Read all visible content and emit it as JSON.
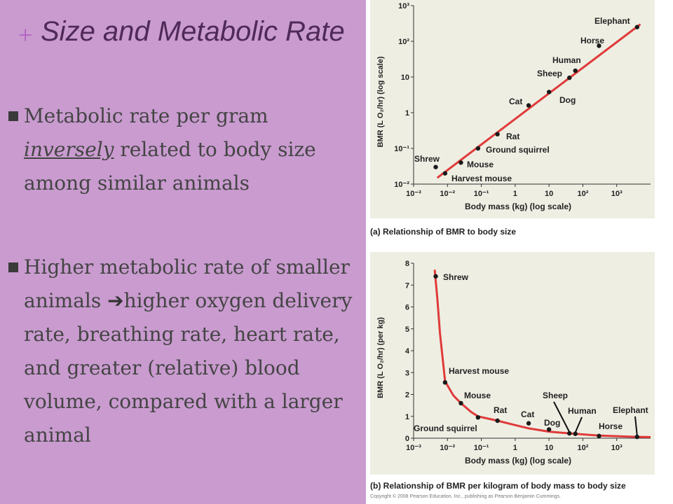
{
  "slide": {
    "plus": "+",
    "title": "Size and Metabolic Rate",
    "bullets": [
      {
        "before": "Metabolic rate per gram ",
        "emphasis": "inversely",
        "after": " related to body size among similar animals"
      },
      {
        "before": "Higher metabolic rate of smaller animals ",
        "arrow": "➔",
        "after": "higher oxygen delivery rate, breathing rate, heart rate, and greater (relative) blood volume, compared with a larger animal"
      }
    ],
    "copyright": "Copyright © 2008 Pearson Education, Inc., publishing as Pearson Benjamin Cummings."
  },
  "colors": {
    "panel": "#c99bcf",
    "title": "#4f2a58",
    "plus": "#b060c0",
    "line": "#e03a3a",
    "chart_bg": "#eeeee3"
  },
  "chart_data": [
    {
      "type": "scatter",
      "caption": "(a) Relationship of BMR to body size",
      "xlabel": "Body mass (kg) (log scale)",
      "ylabel": "BMR (L O₂/hr) (log scale)",
      "x_scale": "log",
      "y_scale": "log",
      "xlim": [
        0.001,
        10000
      ],
      "ylim": [
        0.01,
        1000
      ],
      "x_ticks": [
        {
          "value": 0.001,
          "label": "10⁻³"
        },
        {
          "value": 0.01,
          "label": "10⁻²"
        },
        {
          "value": 0.1,
          "label": "10⁻¹"
        },
        {
          "value": 1,
          "label": "1"
        },
        {
          "value": 10,
          "label": "10"
        },
        {
          "value": 100,
          "label": "10²"
        },
        {
          "value": 1000,
          "label": "10³"
        }
      ],
      "y_ticks": [
        {
          "value": 0.01,
          "label": "10⁻²"
        },
        {
          "value": 0.1,
          "label": "10⁻¹"
        },
        {
          "value": 1,
          "label": "1"
        },
        {
          "value": 10,
          "label": "10"
        },
        {
          "value": 100,
          "label": "10²"
        },
        {
          "value": 1000,
          "label": "10³"
        }
      ],
      "points": [
        {
          "label": "Shrew",
          "x": 0.0045,
          "y": 0.03,
          "anchor": "left"
        },
        {
          "label": "Harvest mouse",
          "x": 0.0085,
          "y": 0.02,
          "anchor": "below"
        },
        {
          "label": "Mouse",
          "x": 0.025,
          "y": 0.04,
          "anchor": "right"
        },
        {
          "label": "Ground squirrel",
          "x": 0.08,
          "y": 0.1,
          "anchor": "right"
        },
        {
          "label": "Rat",
          "x": 0.3,
          "y": 0.25,
          "anchor": "right"
        },
        {
          "label": "Cat",
          "x": 2.5,
          "y": 1.6,
          "anchor": "left"
        },
        {
          "label": "Dog",
          "x": 10,
          "y": 3.8,
          "anchor": "right"
        },
        {
          "label": "Sheep",
          "x": 40,
          "y": 9.5,
          "anchor": "left"
        },
        {
          "label": "Human",
          "x": 60,
          "y": 15,
          "anchor": "above"
        },
        {
          "label": "Horse",
          "x": 300,
          "y": 75,
          "anchor": "left"
        },
        {
          "label": "Elephant",
          "x": 4000,
          "y": 250,
          "anchor": "left"
        }
      ],
      "trendline": [
        [
          0.005,
          0.015
        ],
        [
          5000,
          300
        ]
      ]
    },
    {
      "type": "scatter",
      "caption": "(b) Relationship of BMR per kilogram of body mass to body size",
      "xlabel": "Body mass (kg) (log scale)",
      "ylabel": "BMR (L O₂/hr) (per kg)",
      "x_scale": "log",
      "y_scale": "linear",
      "xlim": [
        0.001,
        10000
      ],
      "ylim": [
        0,
        8
      ],
      "x_ticks": [
        {
          "value": 0.001,
          "label": "10⁻³"
        },
        {
          "value": 0.01,
          "label": "10⁻²"
        },
        {
          "value": 0.1,
          "label": "10⁻¹"
        },
        {
          "value": 1,
          "label": "1"
        },
        {
          "value": 10,
          "label": "10"
        },
        {
          "value": 100,
          "label": "10²"
        },
        {
          "value": 1000,
          "label": "10³"
        }
      ],
      "y_ticks": [
        {
          "value": 0,
          "label": "0"
        },
        {
          "value": 1,
          "label": "1"
        },
        {
          "value": 2,
          "label": "2"
        },
        {
          "value": 3,
          "label": "3"
        },
        {
          "value": 4,
          "label": "4"
        },
        {
          "value": 5,
          "label": "5"
        },
        {
          "value": 6,
          "label": "6"
        },
        {
          "value": 7,
          "label": "7"
        },
        {
          "value": 8,
          "label": "8"
        }
      ],
      "points": [
        {
          "label": "Shrew",
          "x": 0.0045,
          "y": 7.4,
          "anchor": "right"
        },
        {
          "label": "Harvest mouse",
          "x": 0.0085,
          "y": 2.55,
          "anchor": "above-right"
        },
        {
          "label": "Mouse",
          "x": 0.025,
          "y": 1.6,
          "anchor": "above-right"
        },
        {
          "label": "Ground squirrel",
          "x": 0.08,
          "y": 0.95,
          "anchor": "below-left"
        },
        {
          "label": "Rat",
          "x": 0.3,
          "y": 0.8,
          "anchor": "above"
        },
        {
          "label": "Cat",
          "x": 2.5,
          "y": 0.68,
          "anchor": "above"
        },
        {
          "label": "Dog",
          "x": 10,
          "y": 0.4,
          "anchor": "above"
        },
        {
          "label": "Sheep",
          "x": 40,
          "y": 0.22,
          "anchor": "pointer"
        },
        {
          "label": "Human",
          "x": 60,
          "y": 0.2,
          "anchor": "pointer"
        },
        {
          "label": "Horse",
          "x": 300,
          "y": 0.1,
          "anchor": "above"
        },
        {
          "label": "Elephant",
          "x": 4000,
          "y": 0.06,
          "anchor": "pointer"
        }
      ],
      "curve": [
        [
          0.0042,
          7.7
        ],
        [
          0.0045,
          7.2
        ],
        [
          0.005,
          6.4
        ],
        [
          0.006,
          4.8
        ],
        [
          0.0085,
          2.6
        ],
        [
          0.015,
          1.95
        ],
        [
          0.025,
          1.6
        ],
        [
          0.05,
          1.2
        ],
        [
          0.08,
          1.0
        ],
        [
          0.3,
          0.8
        ],
        [
          1,
          0.6
        ],
        [
          2.5,
          0.45
        ],
        [
          10,
          0.3
        ],
        [
          40,
          0.22
        ],
        [
          300,
          0.12
        ],
        [
          4000,
          0.06
        ],
        [
          10000,
          0.05
        ]
      ]
    }
  ]
}
